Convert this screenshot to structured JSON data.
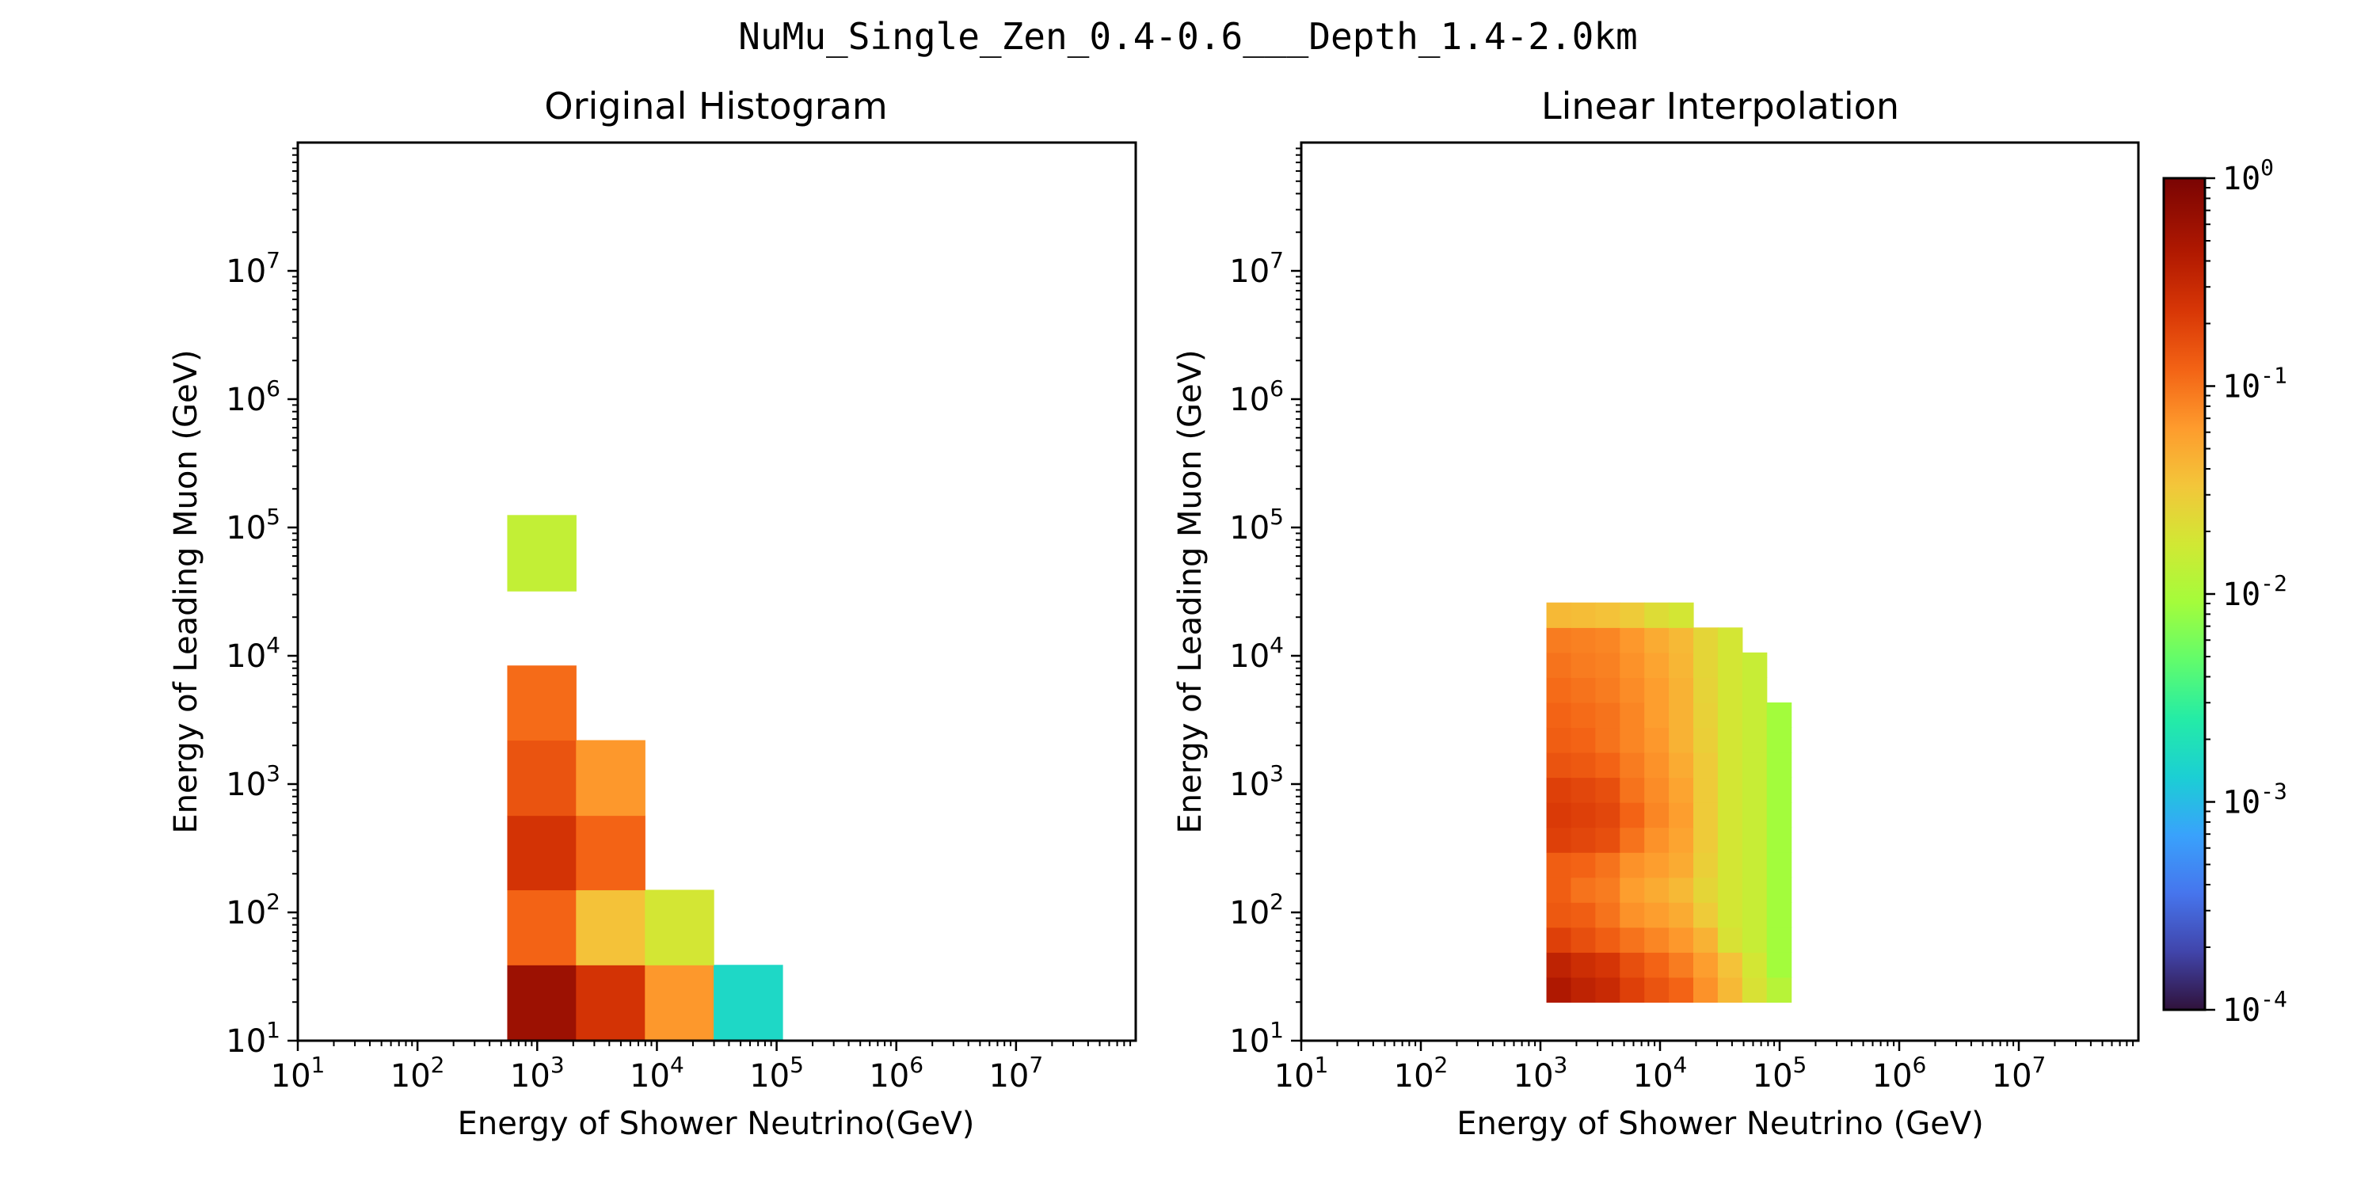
{
  "suptitle": "NuMu_Single_Zen_0.4-0.6___Depth_1.4-2.0km",
  "chart_data": [
    {
      "type": "heatmap",
      "title": "Original Histogram",
      "xlabel": "Energy of Shower Neutrino(GeV)",
      "ylabel": "Energy of Leading Muon (GeV)",
      "x_scale": "log",
      "y_scale": "log",
      "xlim": [
        10,
        100000000.0
      ],
      "ylim": [
        10,
        100000000.0
      ],
      "x_ticks": [
        {
          "exp": "1",
          "value": 10
        },
        {
          "exp": "2",
          "value": 100
        },
        {
          "exp": "3",
          "value": 1000
        },
        {
          "exp": "4",
          "value": 10000
        },
        {
          "exp": "5",
          "value": 100000
        },
        {
          "exp": "6",
          "value": 1000000
        },
        {
          "exp": "7",
          "value": 10000000
        }
      ],
      "y_ticks": [
        {
          "exp": "1",
          "value": 10
        },
        {
          "exp": "2",
          "value": 100
        },
        {
          "exp": "3",
          "value": 1000
        },
        {
          "exp": "4",
          "value": 10000
        },
        {
          "exp": "5",
          "value": 100000
        },
        {
          "exp": "6",
          "value": 1000000
        },
        {
          "exp": "7",
          "value": 10000000
        }
      ],
      "cells": [
        {
          "x0": 562,
          "x1": 2110,
          "y0": 10,
          "y1": 39,
          "value": 0.6
        },
        {
          "x0": 2110,
          "x1": 7940,
          "y0": 10,
          "y1": 39,
          "value": 0.25
        },
        {
          "x0": 7940,
          "x1": 29800,
          "y0": 10,
          "y1": 39,
          "value": 0.065
        },
        {
          "x0": 29800,
          "x1": 112000,
          "y0": 10,
          "y1": 39,
          "value": 0.0016
        },
        {
          "x0": 562,
          "x1": 2110,
          "y0": 39,
          "y1": 150,
          "value": 0.12
        },
        {
          "x0": 2110,
          "x1": 7940,
          "y0": 39,
          "y1": 150,
          "value": 0.035
        },
        {
          "x0": 7940,
          "x1": 29800,
          "y0": 39,
          "y1": 150,
          "value": 0.018
        },
        {
          "x0": 562,
          "x1": 2110,
          "y0": 150,
          "y1": 570,
          "value": 0.25
        },
        {
          "x0": 2110,
          "x1": 7940,
          "y0": 150,
          "y1": 570,
          "value": 0.12
        },
        {
          "x0": 562,
          "x1": 2110,
          "y0": 570,
          "y1": 2200,
          "value": 0.15
        },
        {
          "x0": 2110,
          "x1": 7940,
          "y0": 570,
          "y1": 2200,
          "value": 0.065
        },
        {
          "x0": 562,
          "x1": 2110,
          "y0": 2200,
          "y1": 8400,
          "value": 0.11
        },
        {
          "x0": 562,
          "x1": 2110,
          "y0": 32000,
          "y1": 125000,
          "value": 0.014
        }
      ]
    },
    {
      "type": "heatmap",
      "title": "Linear Interpolation",
      "xlabel": "Energy of Shower Neutrino (GeV)",
      "ylabel": "Energy of Leading Muon (GeV)",
      "x_scale": "log",
      "y_scale": "log",
      "xlim": [
        10,
        100000000.0
      ],
      "ylim": [
        10,
        100000000.0
      ],
      "x_ticks": [
        {
          "exp": "1",
          "value": 10
        },
        {
          "exp": "2",
          "value": 100
        },
        {
          "exp": "3",
          "value": 1000
        },
        {
          "exp": "4",
          "value": 10000
        },
        {
          "exp": "5",
          "value": 100000
        },
        {
          "exp": "6",
          "value": 1000000
        },
        {
          "exp": "7",
          "value": 10000000
        }
      ],
      "y_ticks": [
        {
          "exp": "1",
          "value": 10
        },
        {
          "exp": "2",
          "value": 100
        },
        {
          "exp": "3",
          "value": 1000
        },
        {
          "exp": "4",
          "value": 10000
        },
        {
          "exp": "5",
          "value": 100000
        },
        {
          "exp": "6",
          "value": 1000000
        },
        {
          "exp": "7",
          "value": 10000000
        }
      ],
      "grid": {
        "x_log10_start": 3.05,
        "x_log10_step": 0.2047,
        "y_log10_start": 1.3,
        "y_log10_step": 0.1947,
        "rows_bottom_to_top": [
          [
            0.45,
            0.35,
            0.3,
            0.2,
            0.15,
            0.12,
            0.07,
            0.04,
            0.02,
            0.012
          ],
          [
            0.35,
            0.28,
            0.24,
            0.16,
            0.12,
            0.09,
            0.06,
            0.035,
            0.018,
            0.009
          ],
          [
            0.2,
            0.16,
            0.13,
            0.1,
            0.08,
            0.065,
            0.045,
            0.02,
            0.015,
            0.009
          ],
          [
            0.14,
            0.13,
            0.1,
            0.07,
            0.06,
            0.05,
            0.03,
            0.018,
            0.015,
            0.009
          ],
          [
            0.13,
            0.1,
            0.09,
            0.06,
            0.05,
            0.04,
            0.025,
            0.018,
            0.015,
            0.009
          ],
          [
            0.13,
            0.12,
            0.1,
            0.07,
            0.06,
            0.05,
            0.028,
            0.018,
            0.015,
            0.009
          ],
          [
            0.2,
            0.18,
            0.16,
            0.1,
            0.07,
            0.055,
            0.03,
            0.018,
            0.015,
            0.009
          ],
          [
            0.22,
            0.2,
            0.18,
            0.12,
            0.08,
            0.06,
            0.03,
            0.018,
            0.015,
            0.009
          ],
          [
            0.2,
            0.18,
            0.16,
            0.1,
            0.075,
            0.055,
            0.03,
            0.018,
            0.015,
            0.009
          ],
          [
            0.15,
            0.14,
            0.12,
            0.09,
            0.07,
            0.05,
            0.03,
            0.018,
            0.015,
            0.009
          ],
          [
            0.13,
            0.12,
            0.1,
            0.08,
            0.065,
            0.045,
            0.028,
            0.018,
            0.015,
            0.009
          ],
          [
            0.12,
            0.11,
            0.1,
            0.08,
            0.06,
            0.045,
            0.027,
            0.018,
            0.015,
            0.009
          ],
          [
            0.11,
            0.1,
            0.09,
            0.075,
            0.06,
            0.045,
            0.026,
            0.018,
            0.015,
            null
          ],
          [
            0.1,
            0.09,
            0.085,
            0.07,
            0.055,
            0.042,
            0.025,
            0.018,
            0.015,
            null
          ],
          [
            0.09,
            0.085,
            0.08,
            0.065,
            0.05,
            0.04,
            0.025,
            0.018,
            null,
            null
          ],
          [
            0.04,
            0.038,
            0.035,
            0.03,
            0.022,
            0.018,
            null,
            null,
            null,
            null
          ]
        ]
      }
    }
  ],
  "colorbar": {
    "colormap": "turbo",
    "scale": "log",
    "range": [
      0.0001,
      1
    ],
    "ticks": [
      {
        "exp": "0",
        "value": 1
      },
      {
        "exp": "-1",
        "value": 0.1
      },
      {
        "exp": "-2",
        "value": 0.01
      },
      {
        "exp": "-3",
        "value": 0.001
      },
      {
        "exp": "-4",
        "value": 0.0001
      }
    ],
    "tick_base": "10"
  }
}
